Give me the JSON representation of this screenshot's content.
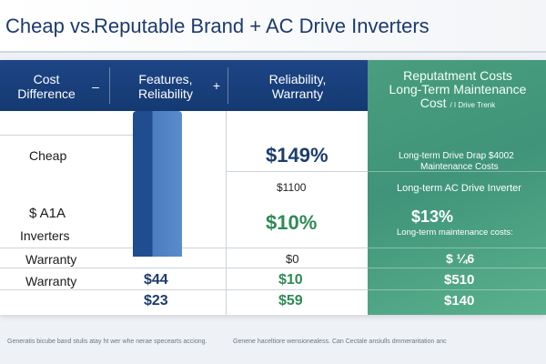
{
  "title": {
    "part1": "Cheap vs.",
    "part2": "Reputable Brand + AC Drive Inverters"
  },
  "header": {
    "col1_line1": "Cost",
    "col1_line2": "Difference",
    "dash": "–",
    "col2_line1": "Features,",
    "col2_line2": "Reliability",
    "plus": "+",
    "col3_line1": "Reliability,",
    "col3_line2": "Warranty",
    "col4_line1": "Reputatment Costs",
    "col4_line2": "Long-Term Maintenance",
    "col4_line3": "Cost",
    "col4_line3b": "/ I Drive Trenk"
  },
  "rows": {
    "r1_label": "Cheap",
    "r1_col3": "$149%",
    "r1_col4_line1": "Long-term Drive Drap $4002",
    "r1_col4_line2": "Maintenance Costs",
    "r2_col3": "$1100",
    "r2_col4": "Long-term AC Drive  Inverter",
    "r3_label": "$ A1A",
    "r3_col3": "$10%",
    "r3_col4_big": "$13%",
    "r3_col4_small": "Long-term maintenance costs:",
    "r4_label": "Inverters",
    "r5_label": "Warranty",
    "r5_col3": "$0",
    "r5_col4": "$ ¼6",
    "r6_label": "Warranty",
    "r6_col2": "$44",
    "r6_col3": "$10",
    "r6_col4": "$510",
    "r7_col2": "$23",
    "r7_col3": "$59",
    "r7_col4": "$140"
  },
  "footer": {
    "left": "Generatis bicube band stulis atay ht wer whe nerae specearts acciong.",
    "right": "Genene haceltiore wensionealess. Can Cectale ansiulls dmmeraritation anc"
  },
  "colors": {
    "header_dark": "#1d4585",
    "header_green": "#4a9d7e",
    "bar": "#1f4d8f",
    "accent_blue": "#1d3c6e",
    "accent_green": "#2f8a55"
  }
}
